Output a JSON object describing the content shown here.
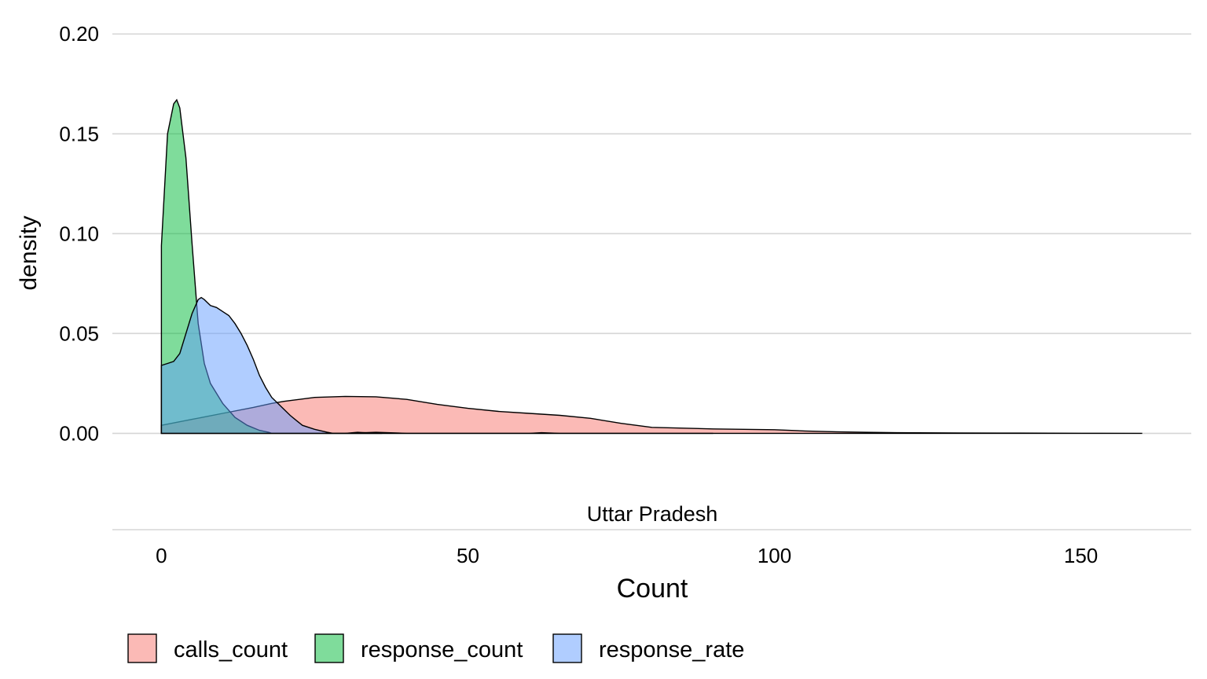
{
  "chart_data": {
    "type": "area",
    "subtype": "density",
    "title": "",
    "xlabel": "Count",
    "ylabel": "density",
    "facet_label": "Uttar Pradesh",
    "xlim": [
      -8,
      168
    ],
    "ylim": [
      -0.027,
      0.206
    ],
    "x_ticks": [
      0,
      50,
      100,
      150
    ],
    "x_tick_labels": [
      "0",
      "50",
      "100",
      "150"
    ],
    "y_ticks": [
      0,
      0.05,
      0.1,
      0.15,
      0.2
    ],
    "y_tick_labels": [
      "0.00",
      "0.05",
      "0.10",
      "0.15",
      "0.20"
    ],
    "grid": "horizontal",
    "legend_position": "bottom",
    "fill_opacity": 0.5,
    "series": [
      {
        "name": "calls_count",
        "color": "#F8766D",
        "points": [
          [
            0,
            0.004
          ],
          [
            5,
            0.007
          ],
          [
            10,
            0.01
          ],
          [
            15,
            0.013
          ],
          [
            18,
            0.015
          ],
          [
            20,
            0.016
          ],
          [
            25,
            0.018
          ],
          [
            30,
            0.0185
          ],
          [
            35,
            0.0183
          ],
          [
            40,
            0.017
          ],
          [
            45,
            0.0145
          ],
          [
            50,
            0.0125
          ],
          [
            55,
            0.011
          ],
          [
            60,
            0.01
          ],
          [
            65,
            0.009
          ],
          [
            70,
            0.0075
          ],
          [
            75,
            0.005
          ],
          [
            80,
            0.003
          ],
          [
            90,
            0.0022
          ],
          [
            100,
            0.0018
          ],
          [
            105,
            0.0012
          ],
          [
            110,
            0.0008
          ],
          [
            115,
            0.0005
          ],
          [
            120,
            0.0003
          ],
          [
            130,
            0.0002
          ],
          [
            140,
            0.0001
          ],
          [
            150,
            5e-05
          ],
          [
            160,
            0.0
          ]
        ]
      },
      {
        "name": "response_count",
        "color": "#00BA38",
        "points": [
          [
            0,
            0.094
          ],
          [
            1,
            0.15
          ],
          [
            2,
            0.165
          ],
          [
            2.5,
            0.167
          ],
          [
            3,
            0.163
          ],
          [
            4,
            0.138
          ],
          [
            5,
            0.095
          ],
          [
            6,
            0.055
          ],
          [
            7,
            0.035
          ],
          [
            8,
            0.025
          ],
          [
            10,
            0.015
          ],
          [
            12,
            0.008
          ],
          [
            14,
            0.004
          ],
          [
            16,
            0.0015
          ],
          [
            17.5,
            0.0005
          ],
          [
            18,
            0.0
          ],
          [
            20,
            0.0
          ],
          [
            30,
            0.0
          ],
          [
            35,
            0.0005
          ],
          [
            40,
            0.0
          ],
          [
            60,
            0.0
          ],
          [
            62,
            0.0003
          ],
          [
            65,
            0.0
          ],
          [
            90,
            0.0
          ]
        ]
      },
      {
        "name": "response_rate",
        "color": "#619CFF",
        "points": [
          [
            0,
            0.034
          ],
          [
            1,
            0.035
          ],
          [
            2,
            0.036
          ],
          [
            3,
            0.04
          ],
          [
            4,
            0.05
          ],
          [
            5,
            0.06
          ],
          [
            6,
            0.067
          ],
          [
            6.5,
            0.068
          ],
          [
            7,
            0.067
          ],
          [
            8,
            0.064
          ],
          [
            9,
            0.063
          ],
          [
            10,
            0.061
          ],
          [
            11,
            0.059
          ],
          [
            12,
            0.055
          ],
          [
            13,
            0.05
          ],
          [
            14,
            0.044
          ],
          [
            15,
            0.037
          ],
          [
            16,
            0.029
          ],
          [
            17,
            0.023
          ],
          [
            18,
            0.018
          ],
          [
            19,
            0.015
          ],
          [
            20,
            0.012
          ],
          [
            21,
            0.009
          ],
          [
            22,
            0.0065
          ],
          [
            23,
            0.004
          ],
          [
            25,
            0.002
          ],
          [
            27,
            0.0006
          ],
          [
            28,
            0.0
          ],
          [
            30,
            0.0
          ],
          [
            32,
            0.0005
          ],
          [
            34,
            0.0002
          ],
          [
            36,
            0.0
          ]
        ]
      }
    ]
  }
}
